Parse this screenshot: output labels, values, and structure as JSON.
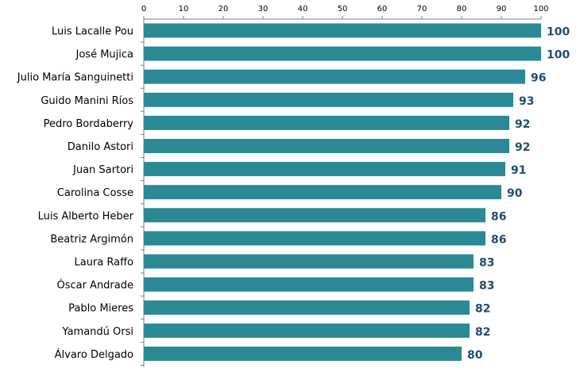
{
  "chart_data": {
    "type": "bar",
    "orientation": "horizontal",
    "title": "",
    "xlabel": "",
    "ylabel": "",
    "xlim": [
      0,
      100
    ],
    "x_ticks": [
      "0",
      "10",
      "20",
      "30",
      "40",
      "50",
      "60",
      "70",
      "80",
      "90",
      "100"
    ],
    "x_axis_position": "top",
    "grid": false,
    "legend": "none",
    "bar_color": "#2b8996",
    "label_color": "#1f4e6b",
    "categories": [
      "Luis Lacalle Pou",
      "José Mujica",
      "Julio María Sanguinetti",
      "Guido Manini Ríos",
      "Pedro Bordaberry",
      "Danilo Astori",
      "Juan Sartori",
      "Carolina Cosse",
      "Luis Alberto Heber",
      "Beatriz Argimón",
      "Laura Raffo",
      "Óscar Andrade",
      "Pablo Mieres",
      "Yamandú Orsi",
      "Álvaro Delgado"
    ],
    "values": [
      100,
      100,
      96,
      93,
      92,
      92,
      91,
      90,
      86,
      86,
      83,
      83,
      82,
      82,
      80
    ],
    "data_labels": [
      "100",
      "100",
      "96",
      "93",
      "92",
      "92",
      "91",
      "90",
      "86",
      "86",
      "83",
      "83",
      "82",
      "82",
      "80"
    ]
  }
}
